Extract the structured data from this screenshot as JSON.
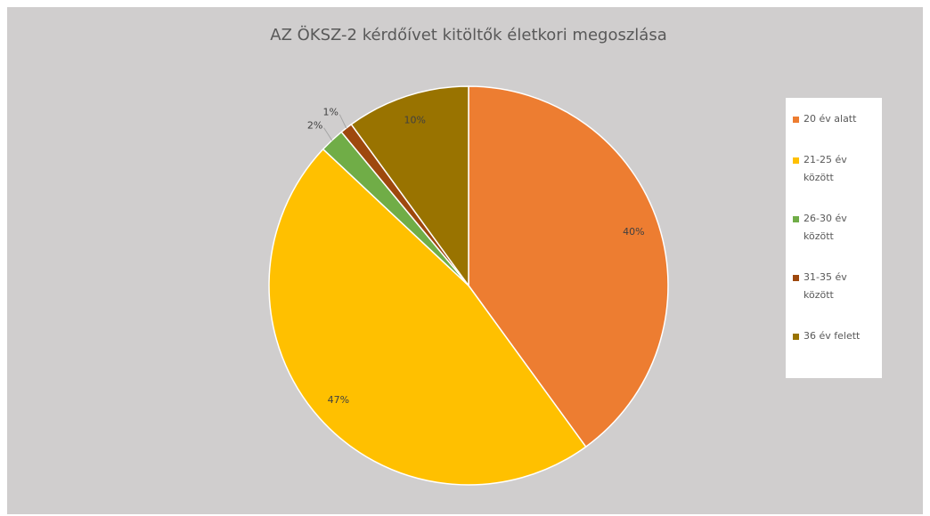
{
  "chart_data": {
    "type": "pie",
    "title": "AZ ÖKSZ-2 kérdőívet kitöltők életkori megoszlása",
    "categories": [
      "20 év alatt",
      "21-25 év között",
      "26-30 év között",
      "31-35 év között",
      "36 év felett"
    ],
    "values": [
      40,
      47,
      2,
      1,
      10
    ],
    "value_labels": [
      "40%",
      "47%",
      "2%",
      "1%",
      "10%"
    ],
    "colors": [
      "#ed7d31",
      "#ffc000",
      "#70ad47",
      "#9e480e",
      "#997300"
    ],
    "legend": "right"
  }
}
